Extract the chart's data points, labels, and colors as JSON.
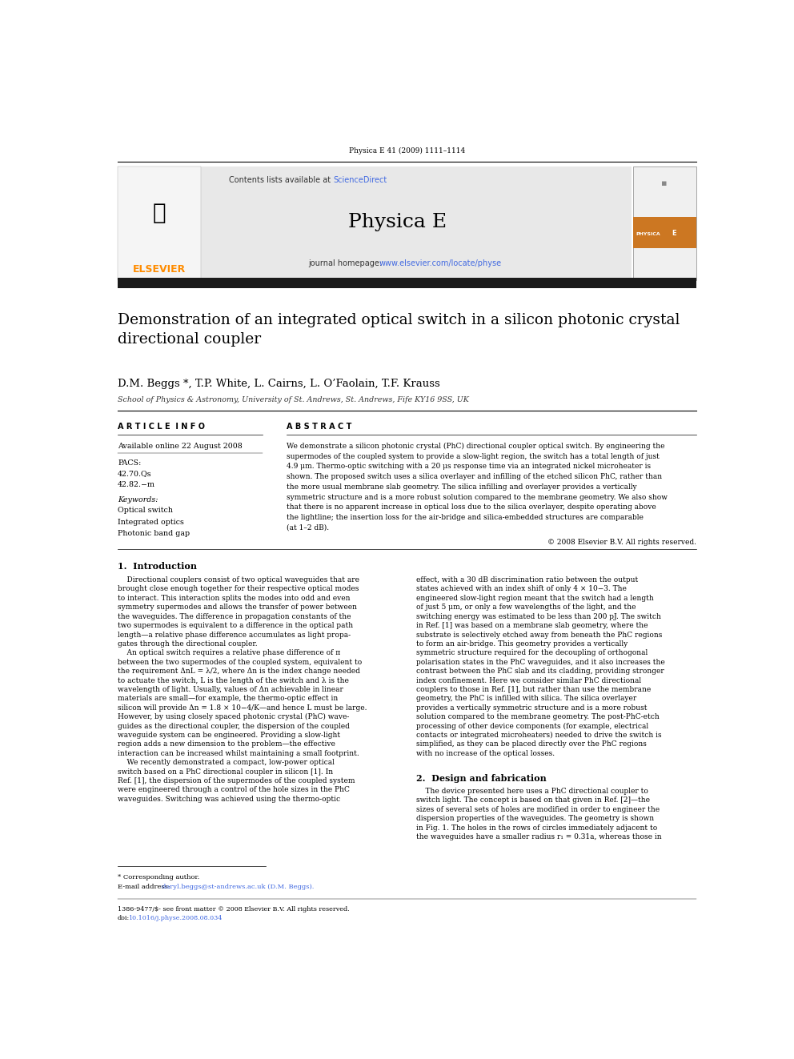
{
  "page_width": 9.92,
  "page_height": 13.23,
  "bg_color": "#ffffff",
  "header_journal": "Physica E 41 (2009) 1111–1114",
  "elsevier_text": "ELSEVIER",
  "elsevier_color": "#FF8C00",
  "contents_text": "Contents lists available at ",
  "sciencedirect_text": "ScienceDirect",
  "sciencedirect_color": "#4169E1",
  "journal_name": "Physica E",
  "journal_homepage_text": "journal homepage: ",
  "journal_url": "www.elsevier.com/locate/physe",
  "journal_url_color": "#4169E1",
  "header_bg": "#e8e8e8",
  "thick_bar_color": "#1a1a1a",
  "title": "Demonstration of an integrated optical switch in a silicon photonic crystal\ndirectional coupler",
  "authors": "D.M. Beggs *, T.P. White, L. Cairns, L. O’Faolain, T.F. Krauss",
  "affiliation": "School of Physics & Astronomy, University of St. Andrews, St. Andrews, Fife KY16 9SS, UK",
  "article_info_header": "A R T I C L E  I N F O",
  "abstract_header": "A B S T R A C T",
  "available_online": "Available online 22 August 2008",
  "pacs_label": "PACS:",
  "pacs_values": [
    "42.70.Qs",
    "42.82.−m"
  ],
  "keywords_label": "Keywords:",
  "keywords": [
    "Optical switch",
    "Integrated optics",
    "Photonic band gap"
  ],
  "footnote_star": "* Corresponding author.",
  "footnote_email_prefix": "E-mail address: ",
  "footnote_email_link": "daryl.beggs@st-andrews.ac.uk (D.M. Beggs).",
  "footnote_issn": "1386-9477/$- see front matter © 2008 Elsevier B.V. All rights reserved.",
  "footnote_doi_prefix": "doi:",
  "footnote_doi_link": "10.1016/j.physe.2008.08.034",
  "footnote_email_color": "#4169E1"
}
